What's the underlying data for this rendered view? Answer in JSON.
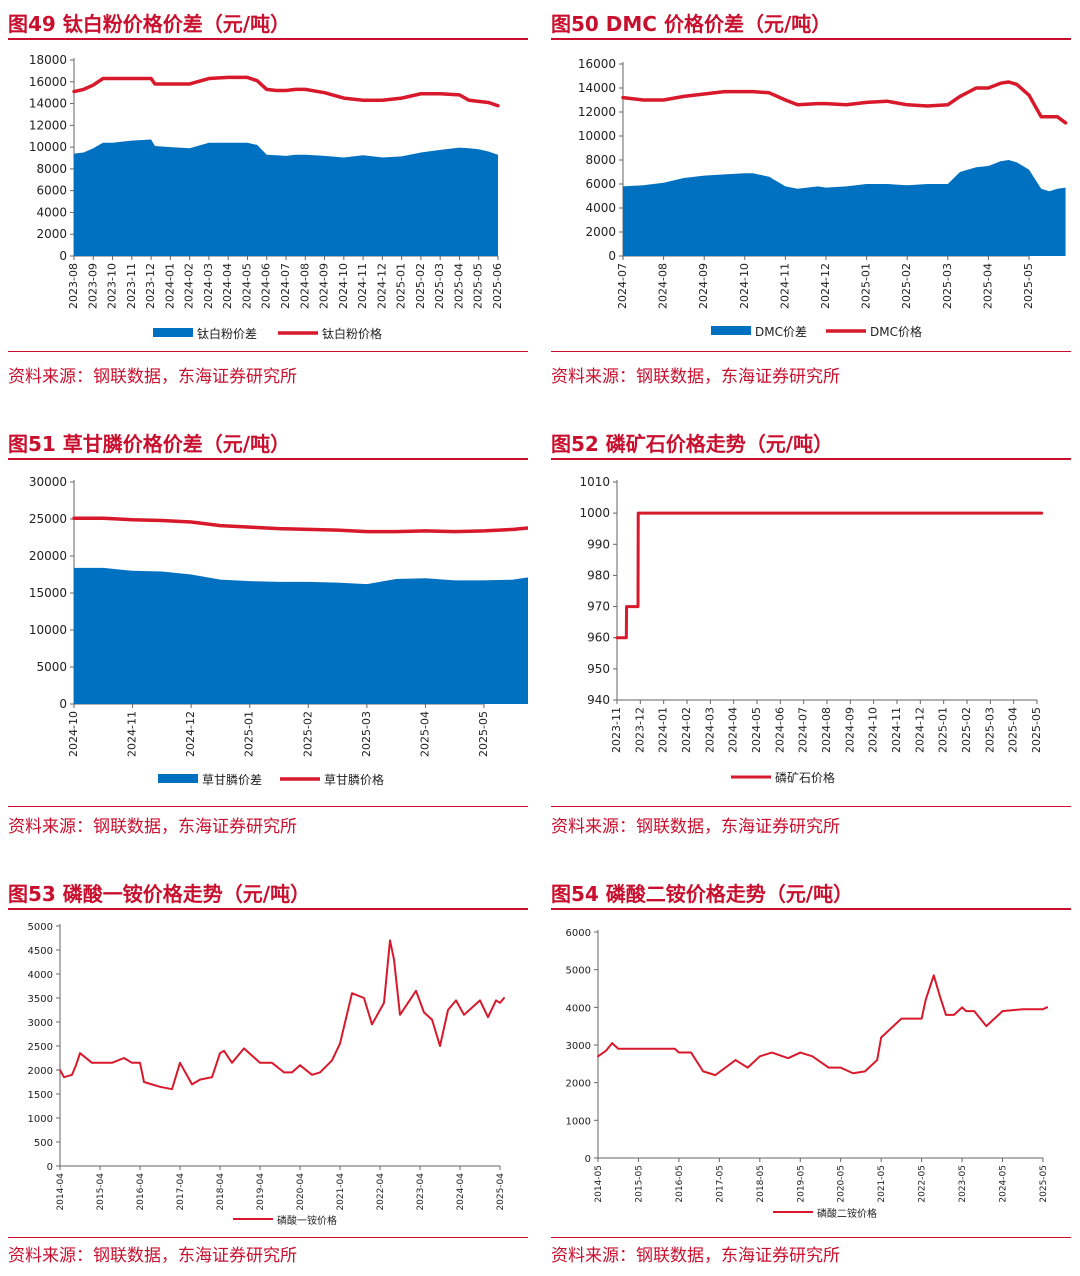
{
  "colors": {
    "accent": "#c8102e",
    "area": "#0070c0",
    "line": "#d7192b"
  },
  "charts": [
    {
      "title": "图49  钛白粉价格价差（元/吨）",
      "source": "资料来源：钢联数据，东海证券研究所",
      "chart_data": {
        "type": "area+line",
        "ylim": [
          0,
          18000
        ],
        "yticks": [
          0,
          2000,
          4000,
          6000,
          8000,
          10000,
          12000,
          14000,
          16000,
          18000
        ],
        "xticks": [
          "2023-08",
          "2023-09",
          "2023-10",
          "2023-11",
          "2023-12",
          "2024-01",
          "2024-02",
          "2024-03",
          "2024-04",
          "2024-05",
          "2024-06",
          "2024-07",
          "2024-08",
          "2024-09",
          "2024-10",
          "2024-11",
          "2024-12",
          "2025-01",
          "2025-02",
          "2025-03",
          "2025-04",
          "2025-05",
          "2025-06"
        ],
        "x": [
          0,
          0.5,
          1,
          1.5,
          2,
          3,
          4,
          4.2,
          5,
          6,
          7,
          8,
          9,
          9.5,
          10,
          10.5,
          11,
          11.5,
          12,
          13,
          14,
          15,
          16,
          17,
          18,
          19,
          20,
          20.5,
          21,
          21.5,
          22
        ],
        "series": [
          {
            "name": "钛白粉价差",
            "kind": "area",
            "values": [
              9400,
              9500,
              9900,
              10400,
              10400,
              10600,
              10700,
              10100,
              10000,
              9900,
              10400,
              10400,
              10400,
              10200,
              9300,
              9250,
              9200,
              9300,
              9300,
              9200,
              9050,
              9250,
              9050,
              9150,
              9500,
              9750,
              9950,
              9900,
              9800,
              9600,
              9300
            ]
          },
          {
            "name": "钛白粉价格",
            "kind": "line",
            "values": [
              15100,
              15300,
              15700,
              16300,
              16300,
              16300,
              16300,
              15800,
              15800,
              15800,
              16300,
              16400,
              16400,
              16100,
              15300,
              15200,
              15200,
              15300,
              15300,
              15000,
              14500,
              14300,
              14300,
              14500,
              14900,
              14900,
              14800,
              14300,
              14200,
              14100,
              13800
            ]
          }
        ]
      }
    },
    {
      "title": "图50  DMC 价格价差（元/吨）",
      "source": "资料来源：钢联数据，东海证券研究所",
      "chart_data": {
        "type": "area+line",
        "ylim": [
          0,
          16000
        ],
        "yticks": [
          0,
          2000,
          4000,
          6000,
          8000,
          10000,
          12000,
          14000,
          16000
        ],
        "xticks": [
          "2024-07",
          "2024-08",
          "2024-09",
          "2024-10",
          "2024-11",
          "2024-12",
          "2025-01",
          "2025-02",
          "2025-03",
          "2025-04",
          "2025-05"
        ],
        "x": [
          0,
          0.5,
          1,
          1.5,
          2,
          2.5,
          3,
          3.2,
          3.6,
          4,
          4.3,
          4.8,
          5,
          5.5,
          6,
          6.5,
          7,
          7.5,
          8,
          8.3,
          8.7,
          9,
          9.3,
          9.5,
          9.7,
          10,
          10.3,
          10.5,
          10.7,
          10.9
        ],
        "series": [
          {
            "name": "DMC价差",
            "kind": "area",
            "values": [
              5800,
              5900,
              6100,
              6500,
              6700,
              6800,
              6900,
              6900,
              6600,
              5800,
              5600,
              5800,
              5700,
              5800,
              6000,
              6000,
              5900,
              6000,
              6000,
              7000,
              7400,
              7500,
              7900,
              8000,
              7800,
              7200,
              5600,
              5400,
              5600,
              5700
            ]
          },
          {
            "name": "DMC价格",
            "kind": "line",
            "values": [
              13200,
              13000,
              13000,
              13300,
              13500,
              13700,
              13700,
              13700,
              13600,
              13000,
              12600,
              12700,
              12700,
              12600,
              12800,
              12900,
              12600,
              12500,
              12600,
              13300,
              14000,
              14000,
              14400,
              14500,
              14300,
              13400,
              11600,
              11600,
              11600,
              11100
            ]
          }
        ]
      }
    },
    {
      "title": "图51  草甘膦价格价差（元/吨）",
      "source": "资料来源：钢联数据，东海证券研究所",
      "chart_data": {
        "type": "area+line",
        "ylim": [
          0,
          30000
        ],
        "yticks": [
          0,
          5000,
          10000,
          15000,
          20000,
          25000,
          30000
        ],
        "xticks": [
          "2024-10",
          "2024-11",
          "2024-12",
          "2025-01",
          "2025-02",
          "2025-03",
          "2025-04",
          "2025-05"
        ],
        "x": [
          0,
          0.5,
          1,
          1.5,
          2,
          2.5,
          3,
          3.5,
          4,
          4.5,
          5,
          5.5,
          6,
          6.5,
          7,
          7.5,
          7.9
        ],
        "series": [
          {
            "name": "草甘膦价差",
            "kind": "area",
            "values": [
              18400,
              18400,
              18000,
              17900,
              17500,
              16800,
              16600,
              16500,
              16500,
              16400,
              16200,
              16900,
              17000,
              16700,
              16700,
              16800,
              17300
            ]
          },
          {
            "name": "草甘膦价格",
            "kind": "line",
            "values": [
              25100,
              25100,
              24900,
              24800,
              24600,
              24100,
              23900,
              23700,
              23600,
              23500,
              23300,
              23300,
              23400,
              23300,
              23400,
              23600,
              23900
            ]
          }
        ]
      }
    },
    {
      "title": "图52  磷矿石价格走势（元/吨）",
      "source": "资料来源：钢联数据，东海证券研究所",
      "chart_data": {
        "type": "line",
        "ylim": [
          940,
          1010
        ],
        "yticks": [
          940,
          950,
          960,
          970,
          980,
          990,
          1000,
          1010
        ],
        "xticks": [
          "2023-11",
          "2023-12",
          "2024-01",
          "2024-02",
          "2024-03",
          "2024-04",
          "2024-05",
          "2024-06",
          "2024-07",
          "2024-08",
          "2024-09",
          "2024-10",
          "2024-11",
          "2024-12",
          "2025-01",
          "2025-02",
          "2025-03",
          "2025-04",
          "2025-05"
        ],
        "x": [
          0,
          0.4,
          0.41,
          0.9,
          0.91,
          18.2
        ],
        "series": [
          {
            "name": "磷矿石价格",
            "kind": "line",
            "values": [
              960,
              960,
              970,
              970,
              1000,
              1000
            ]
          }
        ]
      }
    },
    {
      "title": "图53  磷酸一铵价格走势（元/吨）",
      "source": "资料来源：钢联数据，东海证券研究所",
      "chart_data": {
        "type": "line",
        "ylim": [
          0,
          5000
        ],
        "yticks": [
          0,
          500,
          1000,
          1500,
          2000,
          2500,
          3000,
          3500,
          4000,
          4500,
          5000
        ],
        "xticks": [
          "2014-04",
          "2015-04",
          "2016-04",
          "2017-04",
          "2018-04",
          "2019-04",
          "2020-04",
          "2021-04",
          "2022-04",
          "2023-04",
          "2024-04",
          "2025-04"
        ],
        "x": [
          0,
          0.1,
          0.3,
          0.4,
          0.5,
          0.8,
          1,
          1.3,
          1.6,
          1.8,
          2,
          2.1,
          2.5,
          2.8,
          3,
          3.3,
          3.5,
          3.8,
          4,
          4.1,
          4.3,
          4.6,
          4.8,
          5,
          5.3,
          5.6,
          5.8,
          6,
          6.3,
          6.5,
          6.8,
          7,
          7.1,
          7.3,
          7.6,
          7.8,
          8.1,
          8.25,
          8.35,
          8.5,
          8.7,
          8.9,
          9.1,
          9.3,
          9.5,
          9.7,
          9.9,
          10.1,
          10.3,
          10.5,
          10.7,
          10.9,
          11,
          11.1
        ],
        "series": [
          {
            "name": "磷酸一铵价格",
            "kind": "line",
            "values": [
              2000,
              1850,
              1900,
              2100,
              2350,
              2150,
              2150,
              2150,
              2250,
              2150,
              2150,
              1750,
              1650,
              1600,
              2150,
              1700,
              1800,
              1850,
              2350,
              2400,
              2150,
              2450,
              2300,
              2150,
              2150,
              1950,
              1950,
              2100,
              1900,
              1950,
              2200,
              2550,
              2900,
              3600,
              3500,
              2950,
              3400,
              4700,
              4300,
              3150,
              3400,
              3650,
              3200,
              3050,
              2500,
              3250,
              3450,
              3150,
              3300,
              3450,
              3100,
              3450,
              3400,
              3500
            ]
          }
        ]
      }
    },
    {
      "title": "图54  磷酸二铵价格走势（元/吨）",
      "source": "资料来源：钢联数据，东海证券研究所",
      "chart_data": {
        "type": "line",
        "ylim": [
          0,
          6000
        ],
        "yticks": [
          0,
          1000,
          2000,
          3000,
          4000,
          5000,
          6000
        ],
        "xticks": [
          "2014-05",
          "2015-05",
          "2016-05",
          "2017-05",
          "2018-05",
          "2019-05",
          "2020-05",
          "2021-05",
          "2022-05",
          "2023-05",
          "2024-05",
          "2025-05"
        ],
        "x": [
          0,
          0.2,
          0.35,
          0.5,
          1,
          1.5,
          1.9,
          2,
          2.3,
          2.6,
          2.9,
          3.4,
          3.7,
          4,
          4.3,
          4.7,
          5,
          5.3,
          5.7,
          6,
          6.3,
          6.6,
          6.9,
          7,
          7.3,
          7.5,
          8,
          8.1,
          8.3,
          8.45,
          8.6,
          8.8,
          9,
          9.1,
          9.3,
          9.6,
          10,
          10.5,
          10.9,
          11,
          11.1
        ],
        "series": [
          {
            "name": "磷酸二铵价格",
            "kind": "line",
            "values": [
              2700,
              2850,
              3050,
              2900,
              2900,
              2900,
              2900,
              2800,
              2800,
              2300,
              2200,
              2600,
              2400,
              2700,
              2800,
              2650,
              2800,
              2700,
              2400,
              2400,
              2250,
              2300,
              2600,
              3200,
              3500,
              3700,
              3700,
              4200,
              4850,
              4300,
              3800,
              3800,
              4000,
              3900,
              3900,
              3500,
              3900,
              3950,
              3950,
              3950,
              4000
            ]
          }
        ]
      }
    }
  ]
}
